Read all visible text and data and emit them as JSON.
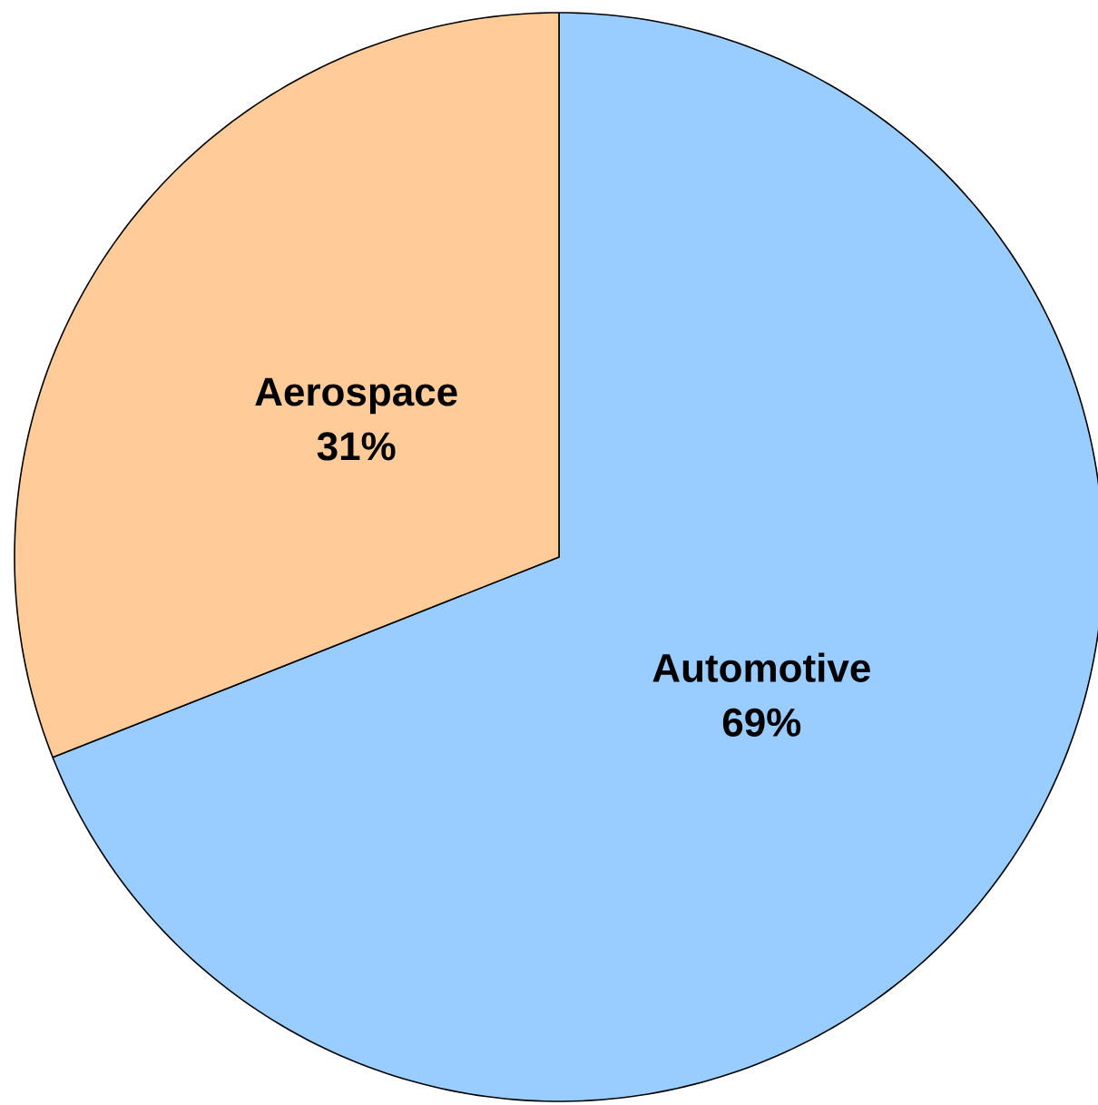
{
  "chart_data": {
    "type": "pie",
    "categories": [
      "Automotive",
      "Aerospace"
    ],
    "values": [
      69,
      31
    ],
    "value_labels": [
      "69%",
      "31%"
    ],
    "colors": [
      "#99ccff",
      "#ffcc99"
    ]
  }
}
